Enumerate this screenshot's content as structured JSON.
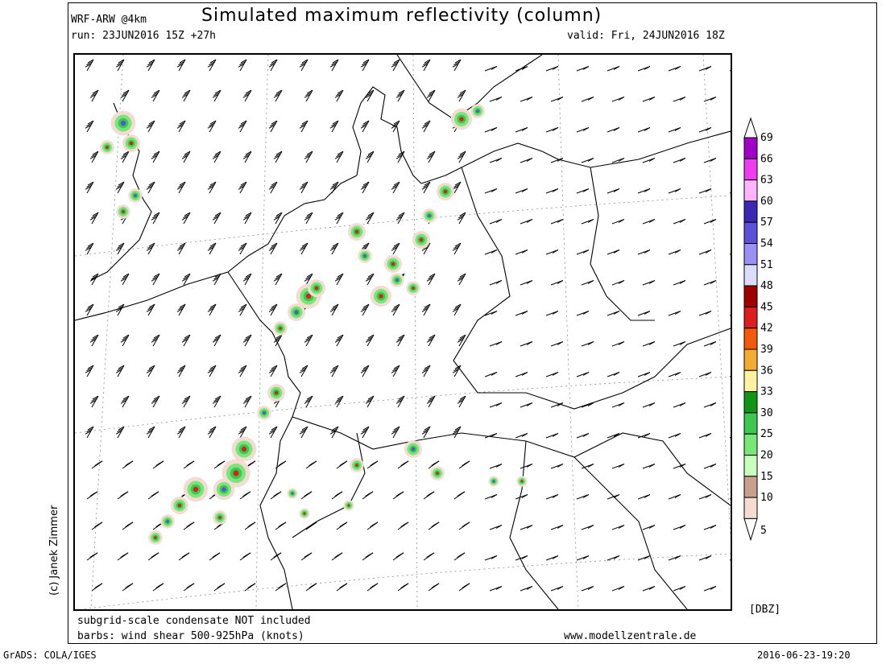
{
  "header": {
    "model": "WRF-ARW @4km",
    "title": "Simulated maximum reflectivity (column)",
    "run": "run: 23JUN2016 15Z +27h",
    "valid": "valid: Fri, 24JUN2016 18Z"
  },
  "legend": {
    "unit": "[DBZ]",
    "levels": [
      {
        "label": "69",
        "color": "#a000c8"
      },
      {
        "label": "66",
        "color": "#f03cf0"
      },
      {
        "label": "63",
        "color": "#ffb4ff"
      },
      {
        "label": "60",
        "color": "#3c28b4"
      },
      {
        "label": "57",
        "color": "#5a50dc"
      },
      {
        "label": "54",
        "color": "#9b91f5"
      },
      {
        "label": "51",
        "color": "#dcdcff"
      },
      {
        "label": "48",
        "color": "#a00000"
      },
      {
        "label": "45",
        "color": "#dc1e1e"
      },
      {
        "label": "42",
        "color": "#f05a0a"
      },
      {
        "label": "39",
        "color": "#f5aa32"
      },
      {
        "label": "36",
        "color": "#fff3a0"
      },
      {
        "label": "33",
        "color": "#0f9614"
      },
      {
        "label": "30",
        "color": "#3cc850"
      },
      {
        "label": "25",
        "color": "#78e678"
      },
      {
        "label": "20",
        "color": "#c8ffbe"
      },
      {
        "label": "15",
        "color": "#c8a08c"
      },
      {
        "label": "10",
        "color": "#f5dcd2"
      },
      {
        "label": "5",
        "color": "#ffffff"
      }
    ]
  },
  "notes": {
    "line1": "subgrid-scale condensate NOT included",
    "line2": "barbs: wind shear 500-925hPa (knots)",
    "website": "www.modellzentrale.de",
    "credit": "(c) Janek Zimmer"
  },
  "footer": {
    "software": "GrADS: COLA/IGES",
    "timestamp": "2016-06-23-19:20"
  },
  "map_colors": {
    "coast": "#000000",
    "grid": "#888888",
    "light": "#f5dcd2",
    "brown": "#c8a08c",
    "green": "#3cc850",
    "lightgreen": "#78e678",
    "red": "#dc1e1e",
    "violet": "#5a50dc"
  }
}
